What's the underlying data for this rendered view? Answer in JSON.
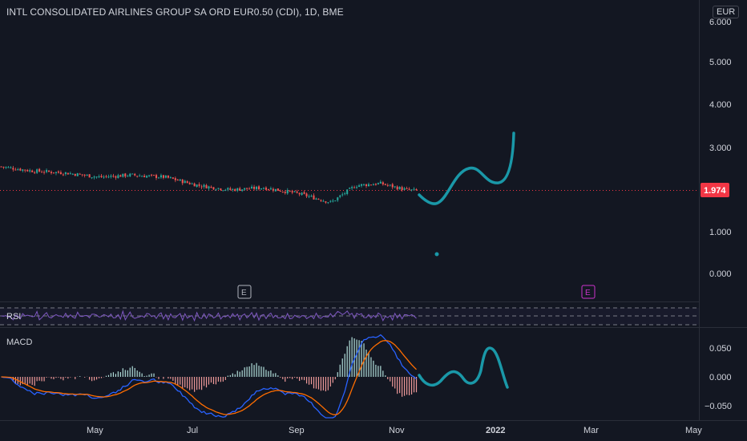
{
  "header": {
    "title": "INTL CONSOLIDATED AIRLINES GROUP SA ORD EUR0.50 (CDI), 1D, BME",
    "currency": "EUR"
  },
  "price_axis": {
    "ticks": [
      "6.000",
      "5.000",
      "4.000",
      "3.000",
      "1.000",
      "0.000"
    ],
    "tick_values": [
      6,
      5,
      4,
      3,
      1,
      0
    ],
    "last_price_label": "1.974",
    "last_price": 1.974
  },
  "earnings_markers": [
    {
      "label": "E",
      "date": "2021-07-29",
      "color": "#b2b5be"
    },
    {
      "label": "E",
      "date": "2022-02-25",
      "color": "#cc33cc"
    }
  ],
  "rsi": {
    "label": "RSI"
  },
  "macd": {
    "label": "MACD",
    "ticks": [
      "0.050",
      "0.000",
      "−0.050"
    ],
    "tick_values": [
      0.05,
      0,
      -0.05
    ]
  },
  "time_axis": {
    "labels": [
      "May",
      "Jul",
      "Sep",
      "Nov",
      "2022",
      "Mar",
      "May"
    ]
  },
  "colors": {
    "background": "#131722",
    "up": "#26a69a",
    "down": "#ef5350",
    "drawing": "#1a98a8",
    "rsi_line": "#7e57c2",
    "macd_line": "#2962ff",
    "signal_line": "#ff6d00",
    "last_price_badge": "#f23645",
    "grid": "#363a45"
  },
  "chart_data": {
    "type": "candlestick",
    "title": "INTL CONSOLIDATED AIRLINES GROUP SA ORD EUR0.50 (CDI), 1D, BME",
    "ylim": [
      -0.5,
      6.2
    ],
    "approx_close": [
      {
        "date": "2021-03-01",
        "close": 2.55
      },
      {
        "date": "2021-03-20",
        "close": 2.45
      },
      {
        "date": "2021-04-10",
        "close": 2.4
      },
      {
        "date": "2021-05-01",
        "close": 2.3
      },
      {
        "date": "2021-05-20",
        "close": 2.35
      },
      {
        "date": "2021-06-10",
        "close": 2.3
      },
      {
        "date": "2021-07-01",
        "close": 2.1
      },
      {
        "date": "2021-07-20",
        "close": 2.0
      },
      {
        "date": "2021-08-10",
        "close": 2.05
      },
      {
        "date": "2021-09-01",
        "close": 1.9
      },
      {
        "date": "2021-09-20",
        "close": 1.7
      },
      {
        "date": "2021-10-05",
        "close": 2.1
      },
      {
        "date": "2021-10-20",
        "close": 2.15
      },
      {
        "date": "2021-11-05",
        "close": 2.0
      },
      {
        "date": "2021-11-12",
        "close": 1.974
      }
    ],
    "series": [
      {
        "name": "RSI"
      },
      {
        "name": "MACD"
      }
    ]
  }
}
